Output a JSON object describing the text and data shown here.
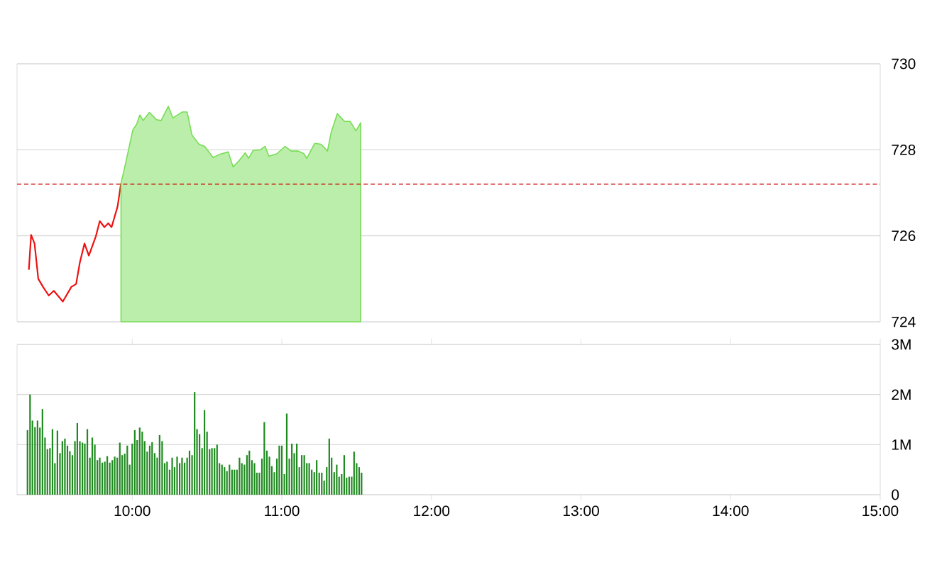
{
  "chart_data": [
    {
      "type": "line",
      "xlim": [
        9.23,
        15
      ],
      "ylim": [
        724,
        730
      ],
      "yticks": [
        724,
        726,
        728,
        730
      ],
      "tick_labels": "y",
      "grid": "y",
      "marker": "none",
      "ref_lines": [
        {
          "axis": "y",
          "value": 727.2,
          "color": "#cc0000",
          "line_style": "dashed"
        }
      ],
      "series": [
        {
          "type": "line",
          "color": "#ee1111",
          "x": [
            9.309,
            9.324,
            9.347,
            9.372,
            9.404,
            9.442,
            9.476,
            9.536,
            9.593,
            9.625,
            9.65,
            9.681,
            9.71,
            9.757,
            9.783,
            9.814,
            9.84,
            9.862,
            9.902,
            9.925
          ],
          "values": [
            725.21,
            726.02,
            725.82,
            725.0,
            724.81,
            724.61,
            724.72,
            724.47,
            724.81,
            724.88,
            725.38,
            725.82,
            725.54,
            725.99,
            726.34,
            726.2,
            726.29,
            726.2,
            726.68,
            727.22
          ]
        },
        {
          "type": "area",
          "color": "#77dd55",
          "x": [
            9.925,
            9.956,
            10.004,
            10.029,
            10.051,
            10.073,
            10.115,
            10.162,
            10.193,
            10.241,
            10.272,
            10.335,
            10.367,
            10.399,
            10.446,
            10.484,
            10.541,
            10.588,
            10.642,
            10.674,
            10.715,
            10.756,
            10.778,
            10.809,
            10.857,
            10.888,
            10.914,
            10.968,
            11.021,
            11.062,
            11.11,
            11.148,
            11.167,
            11.22,
            11.262,
            11.305,
            11.33,
            11.371,
            11.419,
            11.457,
            11.495,
            11.527
          ],
          "values": [
            727.22,
            727.69,
            728.46,
            728.59,
            728.81,
            728.68,
            728.87,
            728.7,
            728.68,
            729.01,
            728.74,
            728.88,
            728.88,
            728.35,
            728.13,
            728.08,
            727.82,
            727.9,
            727.95,
            727.6,
            727.75,
            727.93,
            727.8,
            727.99,
            728.0,
            728.08,
            727.85,
            727.91,
            728.08,
            727.97,
            727.97,
            727.91,
            727.8,
            728.15,
            728.13,
            727.97,
            728.41,
            728.84,
            728.66,
            728.66,
            728.44,
            728.63
          ]
        }
      ]
    },
    {
      "type": "bar",
      "xlim": [
        9.23,
        15
      ],
      "ylim": [
        0,
        3
      ],
      "grid": "y",
      "color": "#1f8a1f",
      "xticks": [
        {
          "value": 10,
          "label": "10:00"
        },
        {
          "value": 11,
          "label": "11:00"
        },
        {
          "value": 12,
          "label": "12:00"
        },
        {
          "value": 13,
          "label": "13:00"
        },
        {
          "value": 14,
          "label": "14:00"
        },
        {
          "value": 15,
          "label": "15:00"
        }
      ],
      "yticks": [
        0,
        {
          "value": 1,
          "label": "1M"
        },
        {
          "value": 2,
          "label": "2M"
        },
        {
          "value": 3,
          "label": "3M"
        }
      ],
      "x": [
        9.3,
        9.317,
        9.333,
        9.35,
        9.367,
        9.383,
        9.4,
        9.417,
        9.433,
        9.45,
        9.467,
        9.483,
        9.5,
        9.517,
        9.533,
        9.55,
        9.567,
        9.583,
        9.6,
        9.617,
        9.633,
        9.65,
        9.667,
        9.683,
        9.7,
        9.717,
        9.733,
        9.75,
        9.767,
        9.783,
        9.8,
        9.817,
        9.833,
        9.85,
        9.867,
        9.883,
        9.9,
        9.917,
        9.933,
        9.95,
        9.967,
        9.983,
        10.0,
        10.017,
        10.033,
        10.05,
        10.067,
        10.083,
        10.1,
        10.117,
        10.133,
        10.15,
        10.167,
        10.183,
        10.2,
        10.217,
        10.233,
        10.25,
        10.267,
        10.283,
        10.3,
        10.317,
        10.333,
        10.35,
        10.367,
        10.383,
        10.4,
        10.417,
        10.433,
        10.45,
        10.467,
        10.483,
        10.5,
        10.517,
        10.533,
        10.55,
        10.567,
        10.583,
        10.6,
        10.617,
        10.633,
        10.65,
        10.667,
        10.683,
        10.7,
        10.717,
        10.733,
        10.75,
        10.767,
        10.783,
        10.8,
        10.817,
        10.833,
        10.85,
        10.867,
        10.883,
        10.9,
        10.917,
        10.933,
        10.95,
        10.967,
        10.983,
        11.0,
        11.017,
        11.033,
        11.05,
        11.067,
        11.083,
        11.1,
        11.117,
        11.133,
        11.15,
        11.167,
        11.183,
        11.2,
        11.217,
        11.233,
        11.25,
        11.267,
        11.283,
        11.3,
        11.317,
        11.333,
        11.35,
        11.367,
        11.383,
        11.4,
        11.417,
        11.433,
        11.45,
        11.467,
        11.483,
        11.5,
        11.517,
        11.533
      ],
      "values": [
        1.29,
        2.0,
        1.48,
        1.35,
        1.48,
        1.34,
        1.71,
        1.14,
        0.91,
        0.93,
        1.31,
        0.63,
        1.28,
        0.83,
        1.07,
        1.12,
        0.98,
        0.87,
        0.79,
        1.07,
        1.43,
        1.07,
        1.04,
        1.02,
        1.31,
        0.74,
        1.14,
        1.0,
        0.69,
        0.74,
        0.64,
        0.66,
        0.77,
        0.64,
        0.69,
        0.76,
        0.74,
        1.04,
        0.79,
        0.82,
        0.98,
        0.6,
        1.02,
        1.29,
        1.09,
        1.34,
        1.26,
        1.07,
        0.86,
        0.98,
        1.05,
        0.83,
        0.74,
        1.19,
        1.07,
        0.63,
        0.66,
        0.5,
        0.74,
        0.55,
        0.76,
        0.63,
        0.74,
        0.64,
        0.74,
        0.88,
        0.79,
        2.05,
        1.31,
        1.21,
        0.93,
        1.69,
        1.26,
        0.91,
        0.93,
        0.93,
        1.0,
        0.63,
        0.6,
        0.55,
        0.47,
        0.6,
        0.5,
        0.5,
        0.5,
        0.74,
        0.63,
        0.6,
        0.79,
        0.88,
        0.69,
        0.63,
        0.44,
        0.44,
        0.72,
        1.45,
        0.88,
        0.76,
        0.57,
        0.45,
        0.72,
        0.98,
        0.98,
        0.41,
        1.62,
        0.72,
        1.02,
        0.83,
        1.02,
        0.55,
        0.79,
        0.79,
        0.63,
        0.63,
        0.5,
        0.45,
        0.69,
        0.44,
        0.44,
        0.28,
        0.55,
        1.12,
        0.74,
        0.45,
        0.6,
        0.36,
        0.41,
        0.79,
        0.34,
        0.36,
        0.36,
        0.86,
        0.63,
        0.55,
        0.44
      ]
    }
  ]
}
